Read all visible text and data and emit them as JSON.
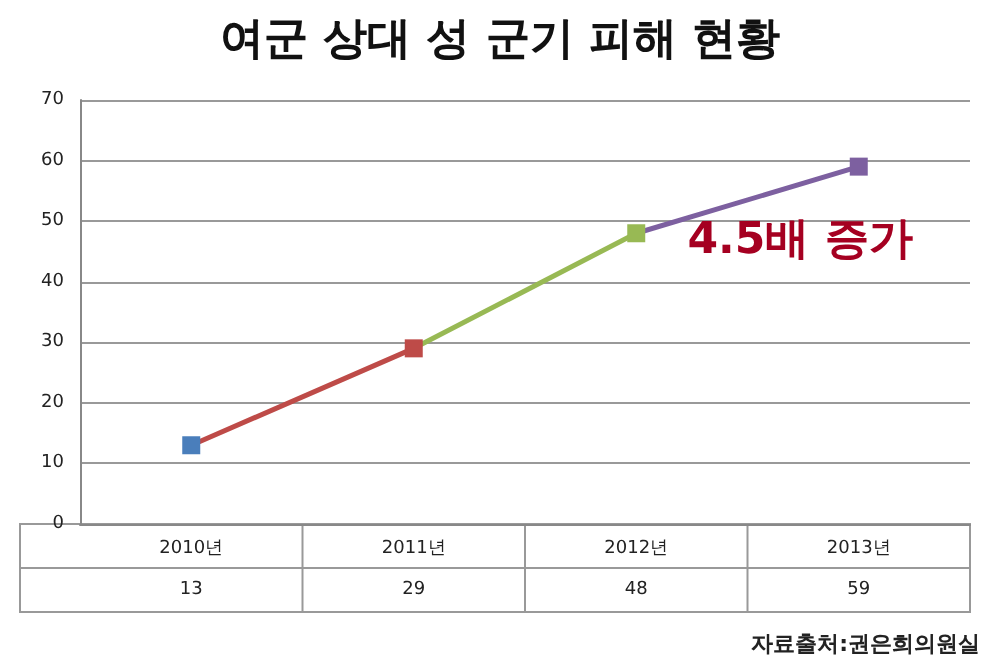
{
  "chart_data": {
    "type": "line",
    "title": "여군 상대 성 군기 피해 현황",
    "categories": [
      "2010년",
      "2011년",
      "2012년",
      "2013년"
    ],
    "values": [
      13,
      29,
      48,
      59
    ],
    "colors": [
      "#4a7ebb",
      "#be4b48",
      "#98b954",
      "#7d60a0"
    ],
    "ylim": [
      0,
      70
    ],
    "yticks": [
      0,
      10,
      20,
      30,
      40,
      50,
      60,
      70
    ],
    "grid": "y",
    "marker": "square",
    "data_labels": true,
    "annotations": [
      "4.5배 증가",
      "자료출처:권은희의원실"
    ]
  }
}
